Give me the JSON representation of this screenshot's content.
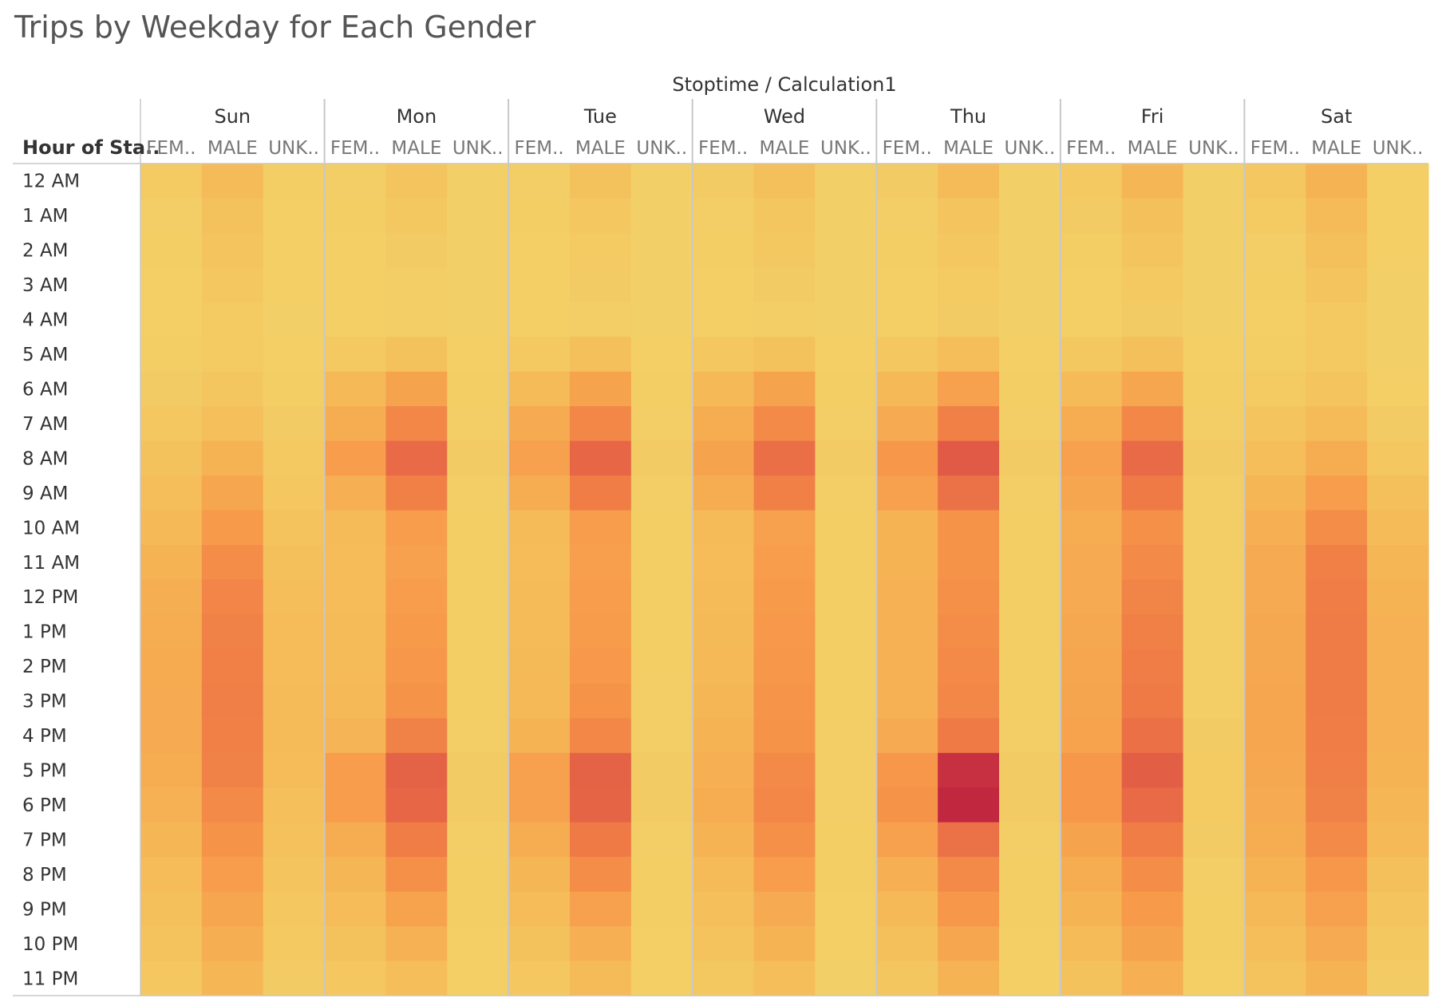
{
  "chart_data": {
    "type": "heatmap",
    "title": "Trips by Weekday for Each Gender",
    "column_header": "Stoptime / Calculation1",
    "row_header": "Hour of Sta..",
    "days": [
      "Sun",
      "Mon",
      "Tue",
      "Wed",
      "Thu",
      "Fri",
      "Sat"
    ],
    "genders": [
      "FEM..",
      "MALE",
      "UNK.."
    ],
    "hours": [
      "12 AM",
      "1 AM",
      "2 AM",
      "3 AM",
      "4 AM",
      "5 AM",
      "6 AM",
      "7 AM",
      "8 AM",
      "9 AM",
      "10 AM",
      "11 AM",
      "12 PM",
      "1 PM",
      "2 PM",
      "3 PM",
      "4 PM",
      "5 PM",
      "6 PM",
      "7 PM",
      "8 PM",
      "9 PM",
      "10 PM",
      "11 PM"
    ],
    "color_scale": [
      "#f3d067",
      "#f5b957",
      "#f79a4a",
      "#ef7a46",
      "#dd5245",
      "#b81a3e"
    ],
    "value_range": [
      0,
      100
    ],
    "values": {
      "Sun": {
        "FEM..": [
          5,
          3,
          2,
          1,
          1,
          2,
          4,
          8,
          12,
          16,
          20,
          24,
          27,
          28,
          29,
          30,
          30,
          28,
          25,
          22,
          17,
          14,
          11,
          8
        ],
        "MALE": [
          18,
          12,
          10,
          8,
          5,
          5,
          9,
          15,
          24,
          32,
          40,
          48,
          53,
          55,
          56,
          57,
          56,
          55,
          50,
          44,
          38,
          32,
          27,
          21
        ],
        "UNK..": [
          2,
          1,
          1,
          1,
          0,
          1,
          2,
          4,
          6,
          8,
          11,
          14,
          16,
          17,
          17,
          18,
          18,
          17,
          15,
          13,
          10,
          8,
          6,
          4
        ]
      },
      "Mon": {
        "FEM..": [
          3,
          2,
          1,
          1,
          1,
          6,
          20,
          28,
          38,
          26,
          18,
          17,
          17,
          18,
          18,
          20,
          23,
          38,
          38,
          28,
          22,
          17,
          12,
          8
        ],
        "MALE": [
          10,
          7,
          4,
          3,
          3,
          12,
          34,
          52,
          68,
          56,
          38,
          36,
          38,
          40,
          42,
          44,
          55,
          72,
          70,
          58,
          46,
          35,
          25,
          16
        ],
        "UNK..": [
          0,
          0,
          0,
          0,
          0,
          1,
          2,
          3,
          4,
          3,
          2,
          2,
          2,
          2,
          2,
          2,
          3,
          4,
          4,
          3,
          2,
          2,
          1,
          1
        ]
      },
      "Tue": {
        "FEM..": [
          3,
          2,
          1,
          1,
          1,
          6,
          18,
          30,
          36,
          28,
          18,
          17,
          18,
          18,
          19,
          20,
          24,
          36,
          36,
          28,
          22,
          17,
          12,
          8
        ],
        "MALE": [
          12,
          8,
          5,
          4,
          3,
          14,
          34,
          52,
          70,
          58,
          38,
          37,
          38,
          39,
          41,
          44,
          52,
          72,
          71,
          60,
          48,
          36,
          26,
          18
        ],
        "UNK..": [
          0,
          0,
          0,
          0,
          0,
          1,
          2,
          3,
          4,
          3,
          2,
          2,
          2,
          2,
          2,
          3,
          3,
          4,
          4,
          3,
          2,
          2,
          1,
          1
        ]
      },
      "Wed": {
        "FEM..": [
          4,
          3,
          2,
          1,
          1,
          8,
          20,
          28,
          34,
          28,
          18,
          17,
          18,
          19,
          20,
          21,
          24,
          26,
          28,
          24,
          18,
          15,
          11,
          7
        ],
        "MALE": [
          14,
          9,
          7,
          4,
          3,
          12,
          34,
          50,
          66,
          56,
          36,
          38,
          40,
          41,
          42,
          43,
          44,
          50,
          52,
          46,
          38,
          30,
          24,
          16
        ],
        "UNK..": [
          0,
          0,
          0,
          0,
          0,
          1,
          2,
          3,
          4,
          3,
          2,
          2,
          2,
          2,
          2,
          2,
          3,
          3,
          3,
          2,
          2,
          1,
          1,
          0
        ]
      },
      "Thu": {
        "FEM..": [
          4,
          3,
          2,
          1,
          1,
          8,
          20,
          30,
          42,
          36,
          24,
          24,
          25,
          25,
          25,
          25,
          30,
          42,
          44,
          36,
          26,
          20,
          14,
          9
        ],
        "MALE": [
          18,
          10,
          8,
          5,
          4,
          16,
          36,
          56,
          76,
          64,
          44,
          44,
          46,
          48,
          50,
          52,
          60,
          92,
          95,
          64,
          50,
          42,
          32,
          24
        ],
        "UNK..": [
          0,
          0,
          0,
          0,
          0,
          1,
          2,
          3,
          4,
          3,
          2,
          2,
          2,
          2,
          2,
          2,
          3,
          4,
          4,
          3,
          2,
          2,
          1,
          1
        ]
      },
      "Fri": {
        "FEM..": [
          6,
          4,
          2,
          1,
          1,
          7,
          18,
          28,
          36,
          32,
          28,
          30,
          30,
          31,
          32,
          33,
          35,
          42,
          42,
          34,
          28,
          24,
          18,
          12
        ],
        "MALE": [
          22,
          14,
          10,
          6,
          4,
          14,
          32,
          52,
          68,
          60,
          46,
          50,
          54,
          56,
          58,
          60,
          65,
          74,
          68,
          58,
          48,
          40,
          34,
          26
        ],
        "UNK..": [
          0,
          0,
          0,
          0,
          0,
          1,
          2,
          3,
          4,
          3,
          3,
          3,
          3,
          3,
          3,
          3,
          4,
          5,
          5,
          4,
          3,
          2,
          2,
          1
        ]
      },
      "Sat": {
        "FEM..": [
          8,
          5,
          3,
          2,
          1,
          2,
          5,
          10,
          16,
          22,
          26,
          30,
          30,
          31,
          31,
          32,
          32,
          31,
          30,
          28,
          24,
          20,
          16,
          11
        ],
        "MALE": [
          24,
          18,
          14,
          10,
          6,
          6,
          10,
          18,
          28,
          38,
          48,
          56,
          58,
          59,
          59,
          59,
          58,
          57,
          55,
          50,
          42,
          36,
          30,
          24
        ],
        "UNK..": [
          1,
          1,
          1,
          0,
          0,
          0,
          1,
          4,
          8,
          14,
          18,
          22,
          24,
          25,
          25,
          25,
          25,
          24,
          22,
          20,
          14,
          10,
          7,
          4
        ]
      }
    }
  }
}
